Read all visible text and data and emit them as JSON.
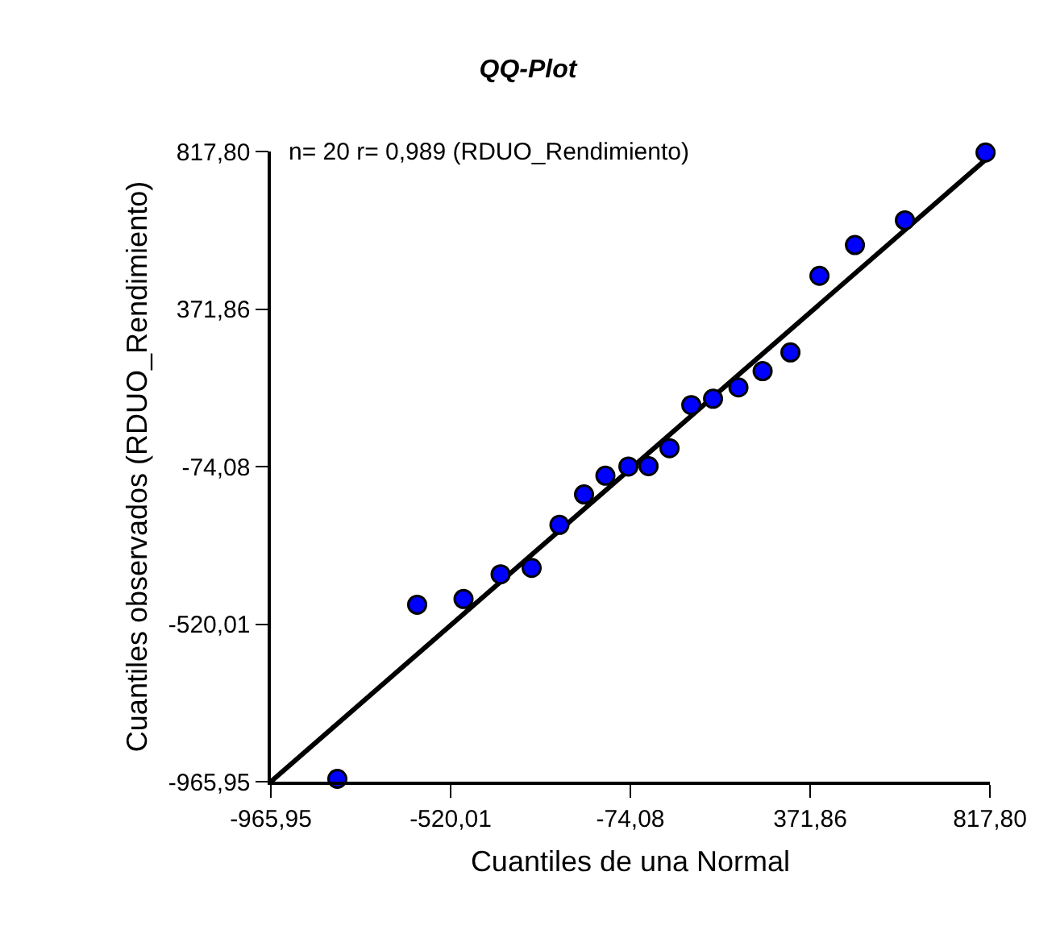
{
  "chart_data": {
    "type": "scatter",
    "title": "QQ-Plot",
    "xlabel": "Cuantiles de una Normal",
    "ylabel": "Cuantiles observados (RDUO_Rendimiento)",
    "annotations": [
      "n= 20 r= 0,989 (RDUO_Rendimiento)"
    ],
    "xlim": [
      -965.95,
      817.8
    ],
    "ylim": [
      -965.95,
      817.8
    ],
    "xticks": [
      {
        "value": -965.95,
        "label": "-965,95"
      },
      {
        "value": -520.01,
        "label": "-520,01"
      },
      {
        "value": -74.08,
        "label": "-74,08"
      },
      {
        "value": 371.86,
        "label": "371,86"
      },
      {
        "value": 817.8,
        "label": "817,80"
      }
    ],
    "yticks": [
      {
        "value": -965.95,
        "label": "-965,95"
      },
      {
        "value": -520.01,
        "label": "-520,01"
      },
      {
        "value": -74.08,
        "label": "-74,08"
      },
      {
        "value": 371.86,
        "label": "371,86"
      },
      {
        "value": 817.8,
        "label": "817,80"
      }
    ],
    "series": [
      {
        "marker": "circle",
        "color": "#0000ff",
        "x": [
          -801,
          -603,
          -488,
          -396,
          -319,
          -250,
          -189,
          -136,
          -79,
          -29,
          23,
          77,
          131,
          194,
          254,
          323,
          395,
          483,
          607,
          807
        ],
        "values": [
          -958,
          -465,
          -449,
          -379,
          -361,
          -239,
          -153,
          -100,
          -74,
          -73,
          -22,
          100,
          118,
          150,
          196,
          249,
          466,
          553,
          623,
          815
        ]
      },
      {
        "type": "line",
        "marker": "none",
        "color": "#000000",
        "x": [
          -965.95,
          817.8
        ],
        "values": [
          -965.95,
          805
        ]
      }
    ]
  }
}
